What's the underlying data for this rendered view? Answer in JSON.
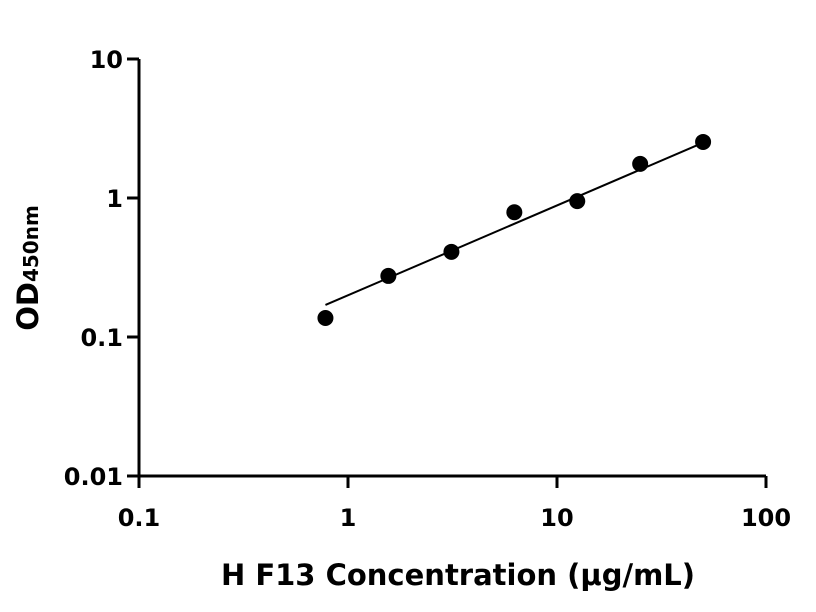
{
  "chart_data": {
    "type": "scatter",
    "x_label": "H F13 Concentration (μg/mL)",
    "y_label": "OD",
    "y_label_sub": "450nm",
    "x": [
      0.78,
      1.56,
      3.125,
      6.25,
      12.5,
      25,
      50
    ],
    "values": [
      0.137,
      0.275,
      0.41,
      0.79,
      0.95,
      1.76,
      2.53
    ],
    "color": "#000000",
    "fit": {
      "x": [
        0.78,
        50
      ],
      "values": [
        0.17,
        2.5
      ]
    },
    "xlim": [
      0.1,
      100
    ],
    "xticks": [
      0.1,
      1,
      10,
      100
    ],
    "ylim": [
      0.01,
      10
    ],
    "yticks": [
      0.01,
      0.1,
      1,
      10
    ],
    "log_x": true,
    "log_y": true,
    "grid": false
  }
}
